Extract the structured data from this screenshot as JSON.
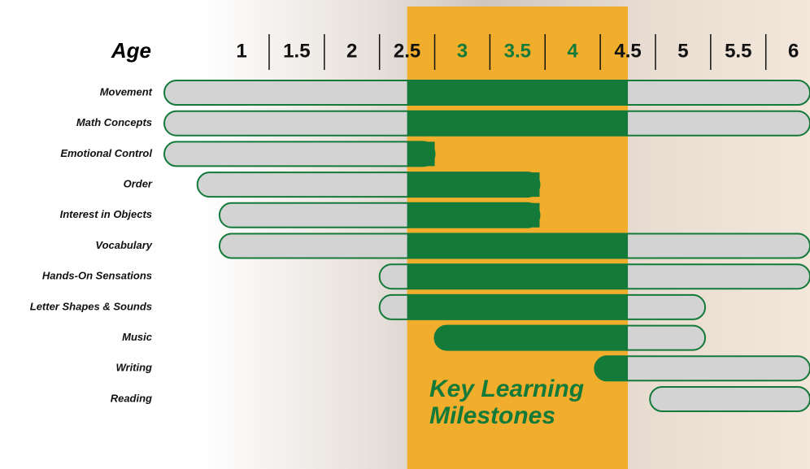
{
  "chart_data": {
    "type": "range",
    "title": "Age",
    "annotation": "Key Learning Milestones",
    "categories": [
      "Movement",
      "Math Concepts",
      "Emotional Control",
      "Order",
      "Interest in Objects",
      "Vocabulary",
      "Hands-On Sensations",
      "Letter Shapes & Sounds",
      "Music",
      "Writing",
      "Reading"
    ],
    "start": [
      0.3,
      0.3,
      0.3,
      0.6,
      0.8,
      0.8,
      2.25,
      2.25,
      2.75,
      4.2,
      4.7
    ],
    "end": [
      6.15,
      6.15,
      2.75,
      3.7,
      3.7,
      6.15,
      6.15,
      5.2,
      5.2,
      6.15,
      6.15
    ],
    "highlight_range": [
      2.5,
      4.5
    ],
    "xlim": [
      0.3,
      6.15
    ],
    "xticks": [
      1,
      1.5,
      2,
      2.5,
      3,
      3.5,
      4,
      4.5,
      5,
      5.5,
      6
    ],
    "color": "#137a3a",
    "bar_color": "#d3d3d3",
    "highlight_color": "#f0ae2c"
  }
}
